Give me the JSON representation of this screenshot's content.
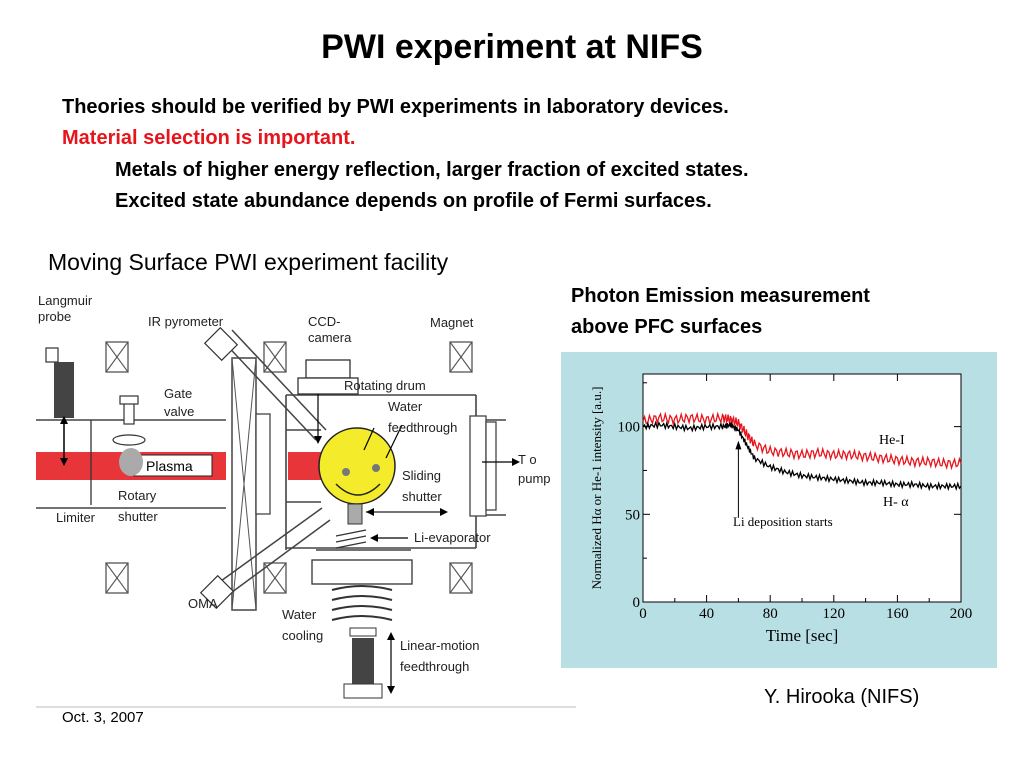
{
  "slide": {
    "title": "PWI experiment at NIFS",
    "bullets": [
      "Theories should be verified by PWI experiments in laboratory devices.",
      "Material selection is important.",
      "Metals of higher energy reflection, larger fraction of excited states.",
      "Excited state abundance depends on profile of Fermi surfaces."
    ],
    "facility_caption": "Moving Surface PWI experiment facility",
    "photon_caption": [
      "Photon Emission measurement",
      "above PFC surfaces"
    ],
    "author": "Y. Hirooka (NIFS)",
    "date": "Oct. 3, 2007",
    "colors": {
      "red_text": "#e8141c",
      "chart_bg": "#b8e0e4",
      "plasma": "#e8353a",
      "drum": "#f4ec2a"
    }
  },
  "diagram": {
    "labels": {
      "langmuir": [
        "Langmuir",
        "probe"
      ],
      "ir": "IR pyrometer",
      "ccd": [
        "CCD-",
        "camera"
      ],
      "magnet": "Magnet",
      "gate": [
        "Gate",
        "valve"
      ],
      "drum": "Rotating drum",
      "water_fd": [
        "Water",
        "feedthrough"
      ],
      "plasma": "Plasma",
      "to_pump": [
        "T o",
        "pump"
      ],
      "rotary": [
        "Rotary",
        "shutter"
      ],
      "sliding": [
        "Sliding",
        "shutter"
      ],
      "limiter": "Limiter",
      "li_evap": "Li-evaporator",
      "oma": "OMA",
      "water_cool": [
        "Water",
        "cooling"
      ],
      "linear": [
        "Linear-motion",
        "feedthrough"
      ]
    }
  },
  "chart_data": {
    "type": "line",
    "xlabel": "Time [sec]",
    "ylabel": "Normalized Hα or He-1 intensity [a.u.]",
    "xlim": [
      0,
      200
    ],
    "ylim": [
      0,
      130
    ],
    "xticks": [
      0,
      40,
      80,
      120,
      160,
      200
    ],
    "yticks": [
      0,
      50,
      100
    ],
    "series": [
      {
        "name": "He-I",
        "color": "#e8141c",
        "x": [
          0,
          10,
          20,
          30,
          40,
          50,
          55,
          60,
          65,
          70,
          80,
          90,
          100,
          110,
          120,
          130,
          140,
          150,
          160,
          170,
          180,
          190,
          200
        ],
        "y": [
          103,
          105,
          104,
          105,
          104,
          105,
          104,
          102,
          96,
          90,
          86,
          85,
          84,
          85,
          84,
          84,
          83,
          82,
          81,
          80,
          80,
          79,
          79
        ]
      },
      {
        "name": "H- α",
        "color": "#000000",
        "x": [
          0,
          10,
          20,
          30,
          40,
          50,
          55,
          60,
          65,
          70,
          80,
          90,
          100,
          110,
          120,
          130,
          140,
          150,
          160,
          170,
          180,
          190,
          200
        ],
        "y": [
          100,
          101,
          100,
          99,
          100,
          100,
          101,
          98,
          90,
          82,
          77,
          74,
          72,
          71,
          70,
          69,
          68,
          68,
          67,
          67,
          66,
          66,
          66
        ]
      }
    ],
    "annotations": [
      {
        "text": "He-I"
      },
      {
        "text": "H- α"
      },
      {
        "text": "Li deposition starts",
        "x": 60
      }
    ]
  }
}
